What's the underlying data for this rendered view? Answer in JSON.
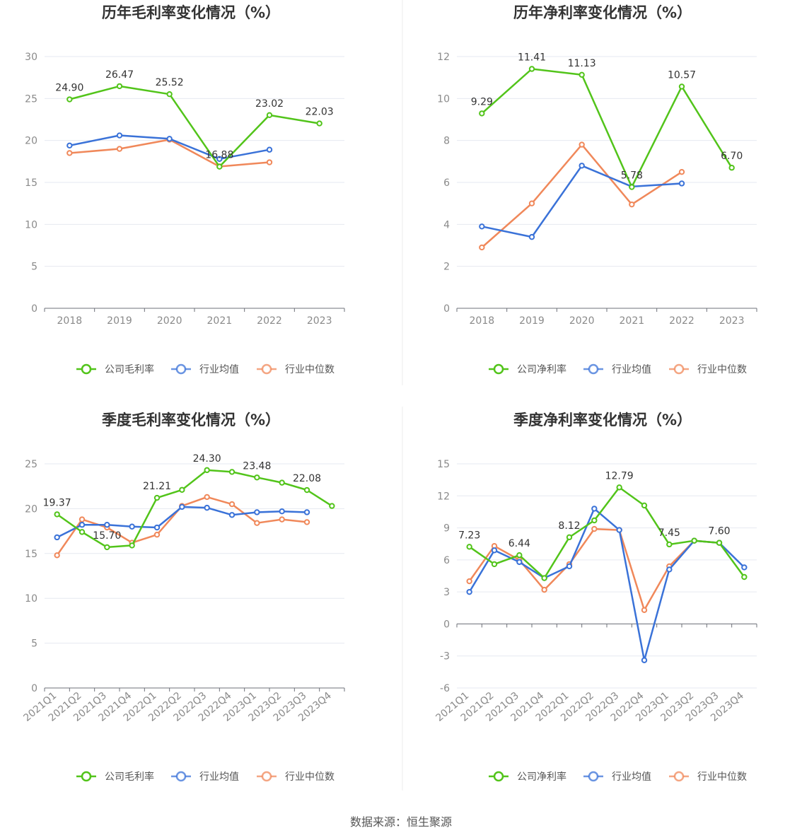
{
  "source": "数据来源：恒生聚源",
  "colors": {
    "company": "#52c41a",
    "avg": "#3a72d8",
    "median": "#f0885a"
  },
  "chart_data": [
    {
      "type": "line",
      "title": "历年毛利率变化情况（%）",
      "categories": [
        "2018",
        "2019",
        "2020",
        "2021",
        "2022",
        "2023"
      ],
      "ylim": [
        0,
        30
      ],
      "yticks": [
        0,
        5,
        10,
        15,
        20,
        25,
        30
      ],
      "grid": true,
      "legend_position": "bottom",
      "series": [
        {
          "name": "公司毛利率",
          "values": [
            24.9,
            26.47,
            25.52,
            16.88,
            23.02,
            22.03
          ],
          "labels": [
            "24.90",
            "26.47",
            "25.52",
            "16.88",
            "23.02",
            "22.03"
          ]
        },
        {
          "name": "行业均值",
          "values": [
            19.4,
            20.6,
            20.2,
            17.8,
            18.9,
            null
          ]
        },
        {
          "name": "行业中位数",
          "values": [
            18.5,
            19.0,
            20.1,
            16.9,
            17.4,
            null
          ]
        }
      ]
    },
    {
      "type": "line",
      "title": "历年净利率变化情况（%）",
      "categories": [
        "2018",
        "2019",
        "2020",
        "2021",
        "2022",
        "2023"
      ],
      "ylim": [
        0,
        12
      ],
      "yticks": [
        0,
        2,
        4,
        6,
        8,
        10,
        12
      ],
      "grid": true,
      "legend_position": "bottom",
      "series": [
        {
          "name": "公司净利率",
          "values": [
            9.29,
            11.41,
            11.13,
            5.78,
            10.57,
            6.7
          ],
          "labels": [
            "9.29",
            "11.41",
            "11.13",
            "5.78",
            "10.57",
            "6.70"
          ]
        },
        {
          "name": "行业均值",
          "values": [
            3.9,
            3.4,
            6.8,
            5.8,
            5.95,
            null
          ]
        },
        {
          "name": "行业中位数",
          "values": [
            2.9,
            5.0,
            7.8,
            4.95,
            6.5,
            null
          ]
        }
      ]
    },
    {
      "type": "line",
      "title": "季度毛利率变化情况（%）",
      "categories": [
        "2021Q1",
        "2021Q2",
        "2021Q3",
        "2021Q4",
        "2022Q1",
        "2022Q2",
        "2022Q3",
        "2022Q4",
        "2023Q1",
        "2023Q2",
        "2023Q3",
        "2023Q4"
      ],
      "ylim": [
        0,
        25
      ],
      "yticks": [
        0,
        5,
        10,
        15,
        20,
        25
      ],
      "grid": true,
      "legend_position": "bottom",
      "series": [
        {
          "name": "公司毛利率",
          "values": [
            19.37,
            17.4,
            15.7,
            15.9,
            21.21,
            22.1,
            24.3,
            24.1,
            23.48,
            22.9,
            22.08,
            20.3
          ],
          "labels": [
            "19.37",
            "",
            "15.70",
            "",
            "21.21",
            "",
            "24.30",
            "",
            "23.48",
            "",
            "22.08",
            ""
          ]
        },
        {
          "name": "行业均值",
          "values": [
            16.8,
            18.2,
            18.2,
            18.0,
            17.9,
            20.2,
            20.1,
            19.3,
            19.6,
            19.7,
            19.6,
            null
          ]
        },
        {
          "name": "行业中位数",
          "values": [
            14.8,
            18.8,
            17.9,
            16.2,
            17.1,
            20.3,
            21.3,
            20.5,
            18.4,
            18.8,
            18.5,
            null
          ]
        }
      ]
    },
    {
      "type": "line",
      "title": "季度净利率变化情况（%）",
      "categories": [
        "2021Q1",
        "2021Q2",
        "2021Q3",
        "2021Q4",
        "2022Q1",
        "2022Q2",
        "2022Q3",
        "2022Q4",
        "2023Q1",
        "2023Q2",
        "2023Q3",
        "2023Q4"
      ],
      "ylim": [
        -6,
        15
      ],
      "yticks": [
        -6,
        -3,
        0,
        3,
        6,
        9,
        12,
        15
      ],
      "grid": true,
      "legend_position": "bottom",
      "series": [
        {
          "name": "公司净利率",
          "values": [
            7.23,
            5.6,
            6.44,
            4.3,
            8.12,
            9.7,
            12.79,
            11.1,
            7.45,
            7.8,
            7.6,
            4.4
          ],
          "labels": [
            "7.23",
            "",
            "6.44",
            "",
            "8.12",
            "",
            "12.79",
            "",
            "7.45",
            "",
            "7.60",
            ""
          ]
        },
        {
          "name": "行业均值",
          "values": [
            3.0,
            6.9,
            5.8,
            4.3,
            5.4,
            10.8,
            8.8,
            -3.4,
            5.1,
            7.8,
            7.6,
            5.3
          ]
        },
        {
          "name": "行业中位数",
          "values": [
            4.0,
            7.3,
            6.0,
            3.2,
            5.6,
            8.9,
            8.8,
            1.3,
            5.4,
            7.8,
            7.6,
            null
          ]
        }
      ]
    }
  ]
}
